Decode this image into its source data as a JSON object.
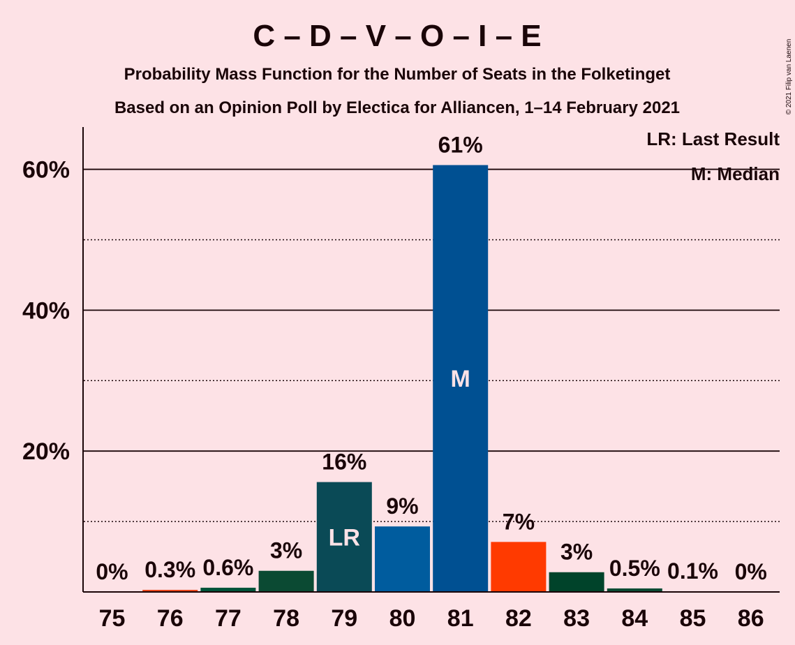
{
  "chart_data": {
    "type": "bar",
    "title": "C – D – V – O – I – E",
    "subtitle": "Probability Mass Function for the Number of Seats in the Folketinget",
    "subtitle2": "Based on an Opinion Poll by Electica for Alliancen, 1–14 February 2021",
    "credit": "© 2021 Filip van Laenen",
    "legend": {
      "placement": "top-right",
      "items": [
        "LR: Last Result",
        "M: Median"
      ]
    },
    "categories": [
      "75",
      "76",
      "77",
      "78",
      "79",
      "80",
      "81",
      "82",
      "83",
      "84",
      "85",
      "86"
    ],
    "values": [
      0,
      0.3,
      0.6,
      3.0,
      15.6,
      9.3,
      60.6,
      7.1,
      2.8,
      0.5,
      0.1,
      0
    ],
    "labels": [
      "0%",
      "0.3%",
      "0.6%",
      "3%",
      "16%",
      "9%",
      "61%",
      "7%",
      "3%",
      "0.5%",
      "0.1%",
      "0%"
    ],
    "colors": [
      "#0D6F5E",
      "#E8471C",
      "#00543A",
      "#0B4A33",
      "#0A4A56",
      "#005C9E",
      "#005092",
      "#FF3A00",
      "#00432A",
      "#0B4A33",
      "#0B4A33",
      "#0B4A33"
    ],
    "markers": {
      "4": "LR",
      "6": "M"
    },
    "ylim": [
      0,
      66
    ],
    "yticks": [
      20,
      40,
      60
    ],
    "ytick_labels": [
      "20%",
      "40%",
      "60%"
    ],
    "minor_gridlines": [
      10,
      30,
      50
    ],
    "grid": true
  }
}
